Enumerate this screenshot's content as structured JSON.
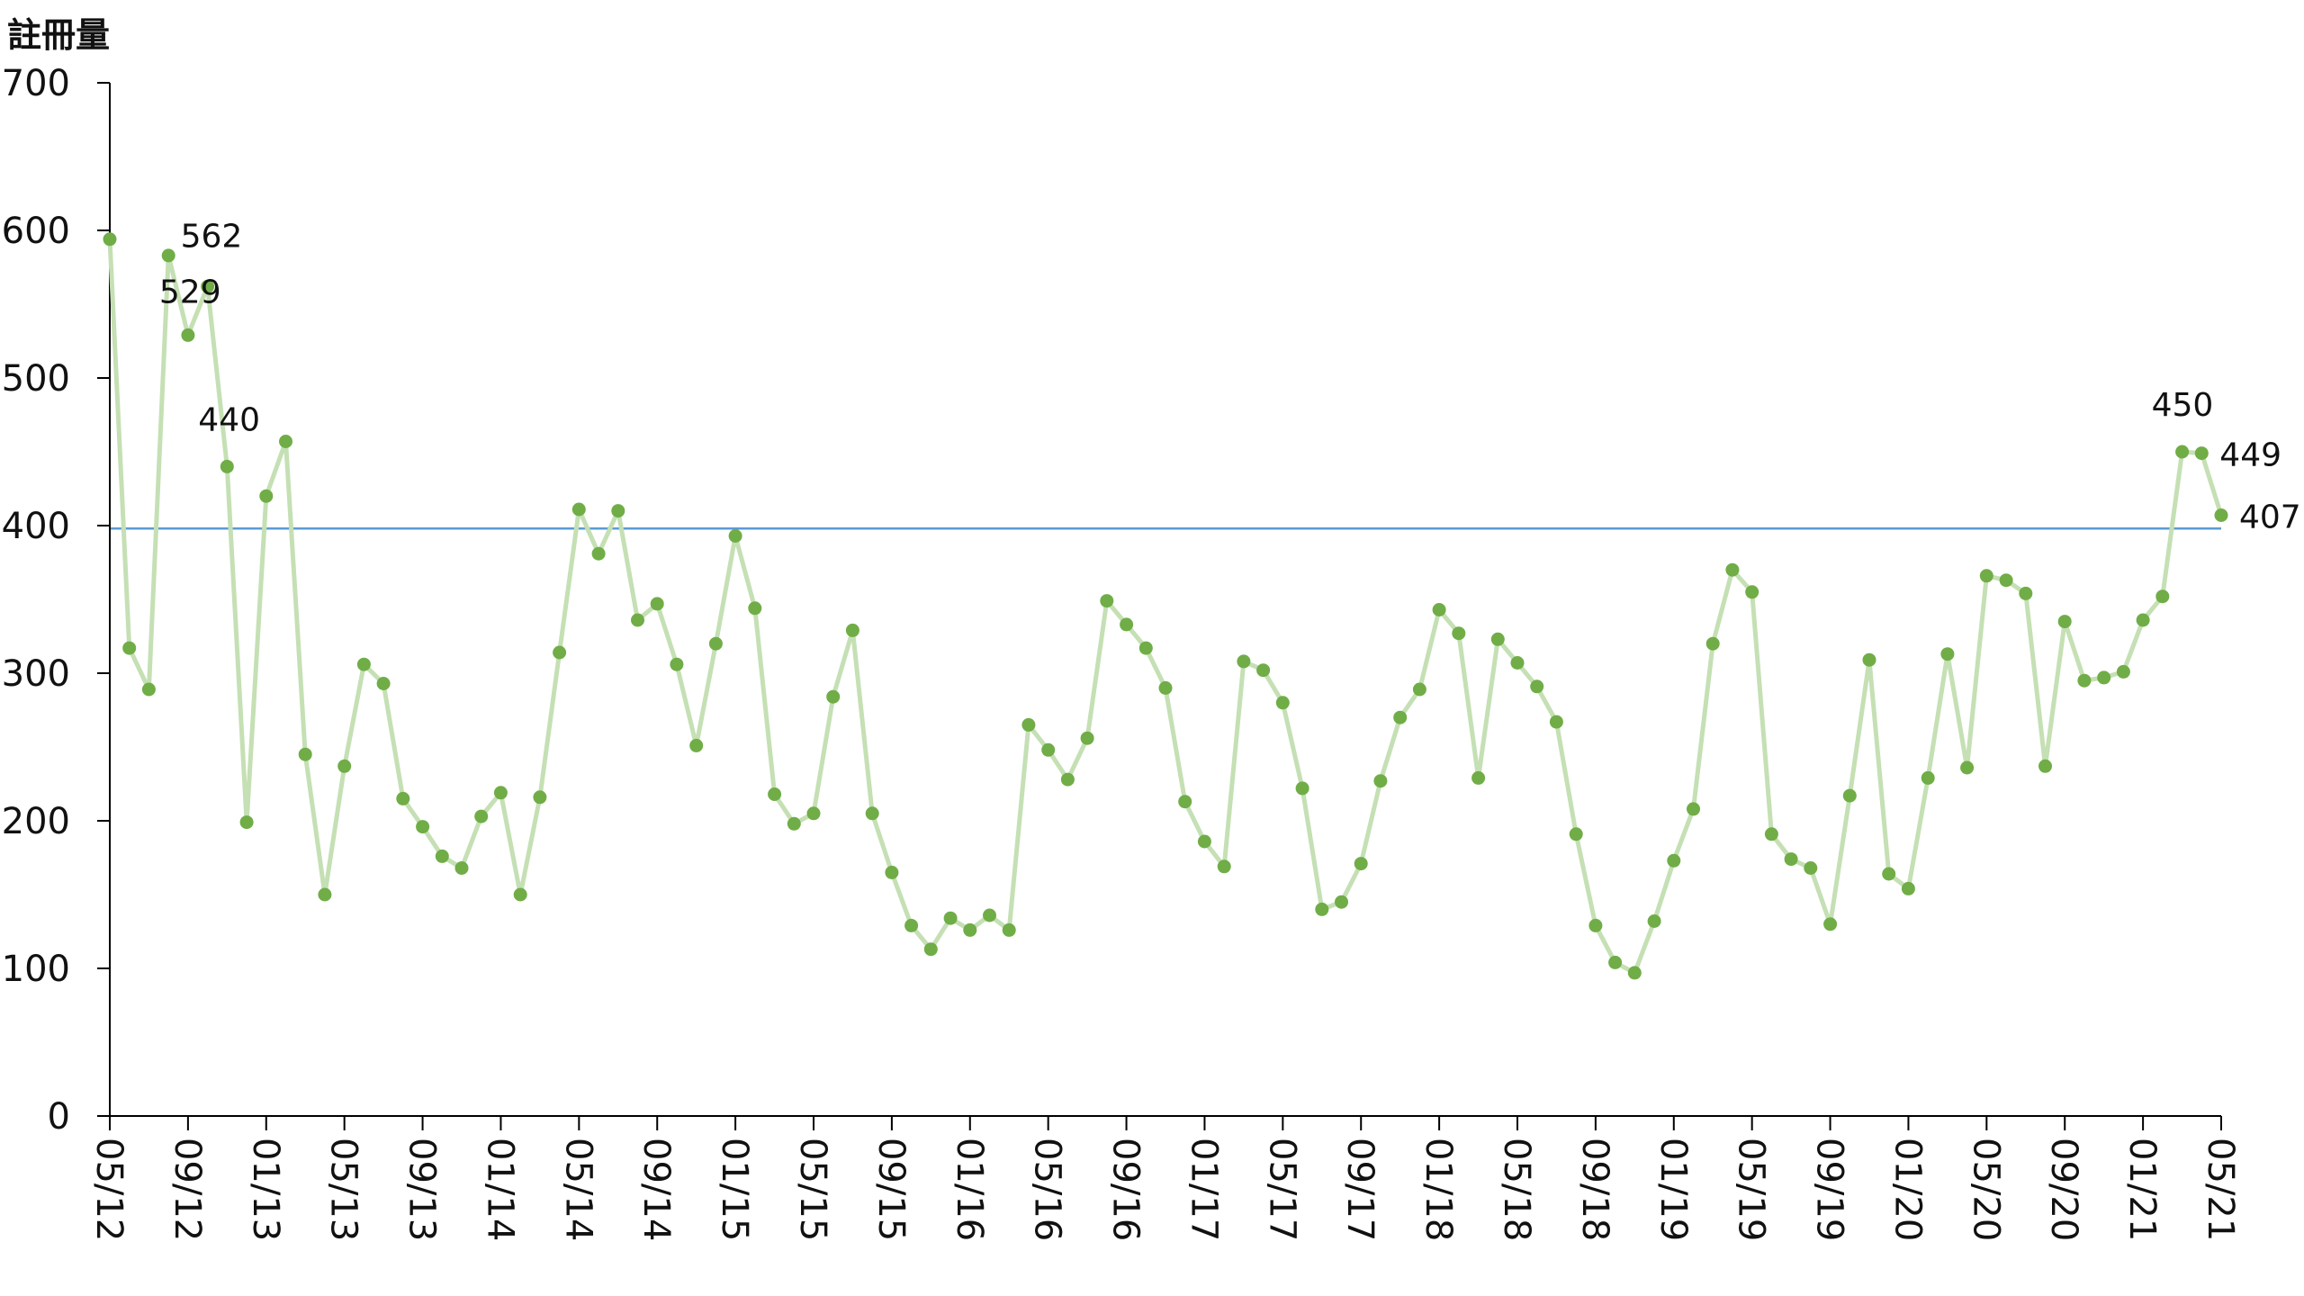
{
  "chart_data": {
    "type": "line",
    "title": "",
    "xlabel": "",
    "ylabel": "註冊量",
    "ylim": [
      0,
      700
    ],
    "yticks": [
      "0",
      "100",
      "200",
      "300",
      "400",
      "500",
      "600",
      "700"
    ],
    "x_tick_labels": [
      "05/12",
      "09/12",
      "01/13",
      "05/13",
      "09/13",
      "01/14",
      "05/14",
      "09/14",
      "01/15",
      "05/15",
      "09/15",
      "01/16",
      "05/16",
      "09/16",
      "01/17",
      "05/17",
      "09/17",
      "01/18",
      "05/18",
      "09/18",
      "01/19",
      "05/19",
      "09/19",
      "01/20",
      "05/20",
      "09/20",
      "01/21",
      "05/21"
    ],
    "x_start": "2012-05",
    "reference_line": 398,
    "colors": {
      "line": "#c5e0b4",
      "marker": "#70ad47",
      "reference": "#5b9bd5",
      "axis": "#000000"
    },
    "series": [
      {
        "values": [
          594,
          317,
          289,
          583,
          529,
          562,
          440,
          199,
          420,
          457,
          245,
          150,
          237,
          306,
          293,
          215,
          196,
          176,
          168,
          203,
          219,
          150,
          216,
          314,
          411,
          381,
          410,
          336,
          347,
          306,
          251,
          320,
          393,
          344,
          218,
          198,
          205,
          284,
          329,
          205,
          165,
          129,
          113,
          134,
          126,
          136,
          126,
          265,
          248,
          228,
          256,
          349,
          333,
          317,
          290,
          213,
          186,
          169,
          308,
          302,
          280,
          222,
          140,
          145,
          171,
          227,
          270,
          289,
          343,
          327,
          229,
          323,
          307,
          291,
          267,
          191,
          129,
          104,
          97,
          132,
          173,
          208,
          320,
          370,
          355,
          191,
          174,
          168,
          130,
          217,
          309,
          164,
          154,
          229,
          313,
          236,
          366,
          363,
          354,
          237,
          335,
          295,
          297,
          301,
          336,
          352,
          450,
          449,
          407
        ]
      }
    ],
    "data_labels": [
      {
        "index": 4,
        "text": "529"
      },
      {
        "index": 5,
        "text": "562"
      },
      {
        "index": 6,
        "text": "440"
      },
      {
        "index": 106,
        "text": "450"
      },
      {
        "index": 107,
        "text": "449"
      },
      {
        "index": 108,
        "text": "407"
      }
    ]
  }
}
